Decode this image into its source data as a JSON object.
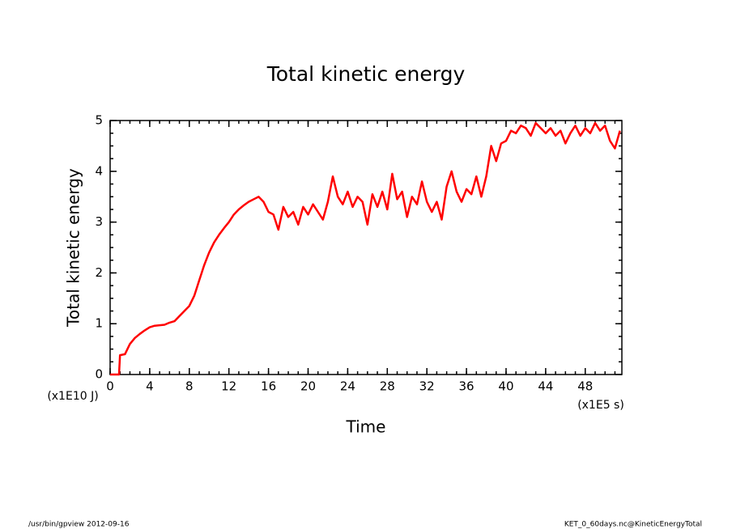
{
  "chart_data": {
    "type": "line",
    "title": "Total kinetic energy",
    "x_label": "Time",
    "y_label": "Total kinetic energy",
    "x_unit": "(x1E5 s)",
    "y_unit": "(x1E10 J)",
    "footer_left": "/usr/bin/gpview  2012-09-16",
    "footer_right": "KET_0_60days.nc@KineticEnergyTotal",
    "xlim": [
      0,
      51.7
    ],
    "ylim": [
      0,
      5
    ],
    "xticks": [
      0,
      4,
      8,
      12,
      16,
      20,
      24,
      28,
      32,
      36,
      40,
      44,
      48
    ],
    "yticks": [
      0,
      1,
      2,
      3,
      4,
      5
    ],
    "x": [
      0,
      0.5,
      0.9,
      1.0,
      1.5,
      2,
      2.5,
      3,
      3.5,
      4,
      4.5,
      5,
      5.5,
      6,
      6.5,
      7,
      7.5,
      8,
      8.5,
      9,
      9.5,
      10,
      10.5,
      11,
      11.5,
      12,
      12.5,
      13,
      13.5,
      14,
      14.5,
      15,
      15.5,
      16,
      16.5,
      17,
      17.5,
      18,
      18.5,
      19,
      19.5,
      20,
      20.5,
      21,
      21.5,
      22,
      22.5,
      23,
      23.5,
      24,
      24.5,
      25,
      25.5,
      26,
      26.5,
      27,
      27.5,
      28,
      28.5,
      29,
      29.5,
      30,
      30.5,
      31,
      31.5,
      32,
      32.5,
      33,
      33.5,
      34,
      34.5,
      35,
      35.5,
      36,
      36.5,
      37,
      37.5,
      38,
      38.5,
      39,
      39.5,
      40,
      40.5,
      41,
      41.5,
      42,
      42.5,
      43,
      43.5,
      44,
      44.5,
      45,
      45.5,
      46,
      46.5,
      47,
      47.5,
      48,
      48.5,
      49,
      49.5,
      50,
      50.5,
      51,
      51.5
    ],
    "series": [
      {
        "name": "Total kinetic energy",
        "color": "#ff0000",
        "values": [
          0,
          0,
          0,
          0.38,
          0.4,
          0.6,
          0.72,
          0.8,
          0.87,
          0.93,
          0.96,
          0.97,
          0.98,
          1.02,
          1.05,
          1.15,
          1.25,
          1.35,
          1.55,
          1.85,
          2.15,
          2.4,
          2.6,
          2.75,
          2.88,
          3.0,
          3.15,
          3.25,
          3.33,
          3.4,
          3.45,
          3.5,
          3.4,
          3.2,
          3.15,
          2.85,
          3.3,
          3.1,
          3.2,
          2.95,
          3.3,
          3.15,
          3.35,
          3.2,
          3.05,
          3.4,
          3.9,
          3.5,
          3.35,
          3.6,
          3.3,
          3.5,
          3.4,
          2.95,
          3.55,
          3.3,
          3.6,
          3.25,
          3.95,
          3.45,
          3.6,
          3.1,
          3.5,
          3.35,
          3.8,
          3.4,
          3.2,
          3.4,
          3.05,
          3.7,
          4.0,
          3.6,
          3.4,
          3.65,
          3.55,
          3.9,
          3.5,
          3.9,
          4.5,
          4.2,
          4.55,
          4.6,
          4.8,
          4.75,
          4.9,
          4.85,
          4.7,
          4.95,
          4.85,
          4.75,
          4.85,
          4.7,
          4.8,
          4.55,
          4.75,
          4.9,
          4.7,
          4.85,
          4.75,
          4.95,
          4.8,
          4.9,
          4.6,
          4.45,
          4.8
        ]
      }
    ]
  }
}
